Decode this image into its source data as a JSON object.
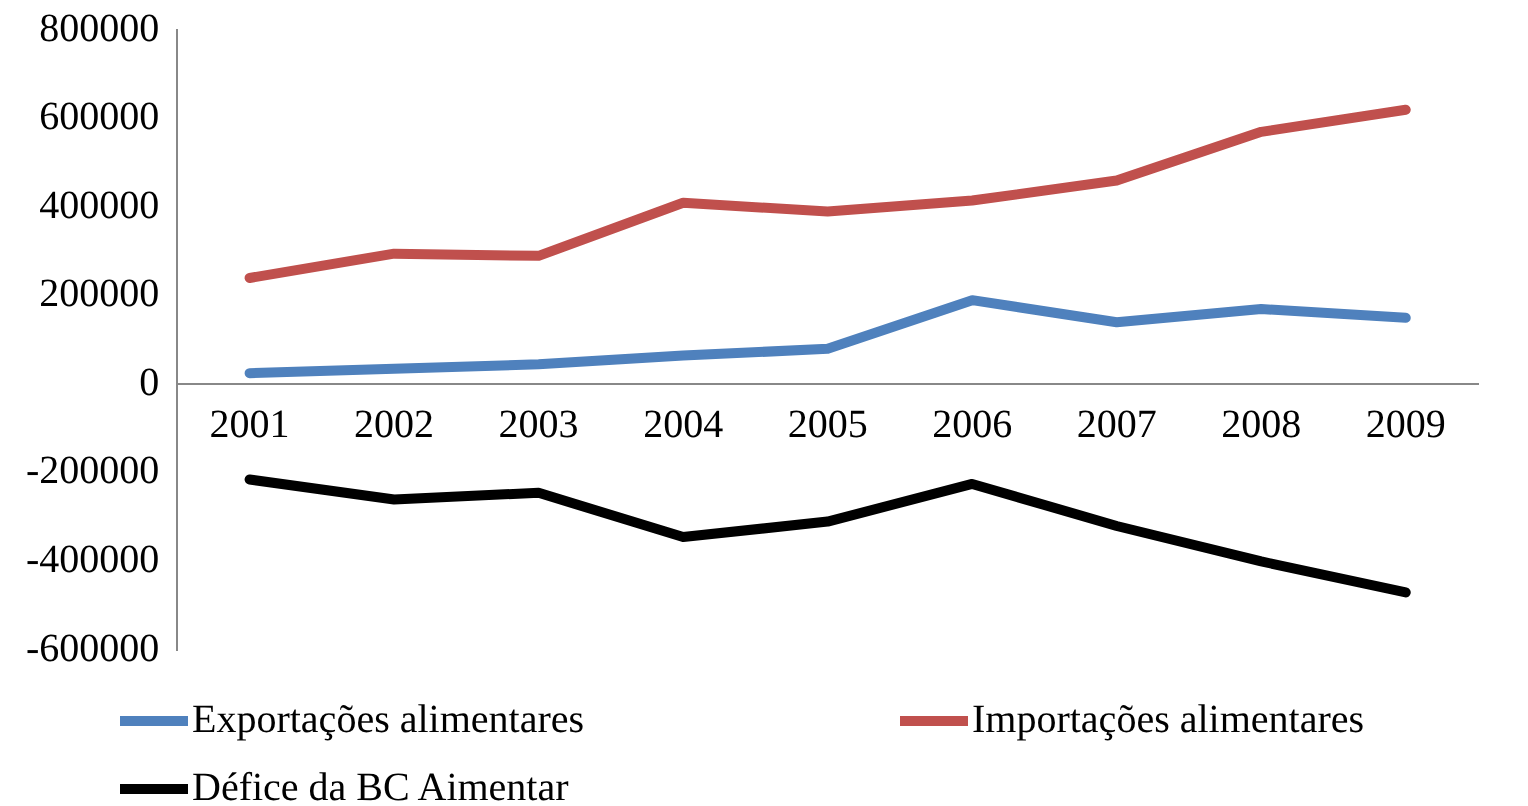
{
  "chart_data": {
    "type": "line",
    "categories": [
      "2001",
      "2002",
      "2003",
      "2004",
      "2005",
      "2006",
      "2007",
      "2008",
      "2009"
    ],
    "series": [
      {
        "name": "Exportações alimentares",
        "color": "#4f81bd",
        "values": [
          25000,
          35000,
          45000,
          65000,
          80000,
          190000,
          140000,
          170000,
          150000
        ]
      },
      {
        "name": "Importações alimentares",
        "color": "#c0504d",
        "values": [
          240000,
          295000,
          290000,
          410000,
          390000,
          415000,
          460000,
          570000,
          620000
        ]
      },
      {
        "name": "Défice da BC Aimentar",
        "color": "#000000",
        "values": [
          -215000,
          -260000,
          -245000,
          -345000,
          -310000,
          -225000,
          -320000,
          -400000,
          -470000
        ]
      }
    ],
    "ylim": [
      -600000,
      800000
    ],
    "yticks": [
      -600000,
      -400000,
      -200000,
      0,
      200000,
      400000,
      600000,
      800000
    ],
    "grid": false,
    "legend": "bottom",
    "marker": "none",
    "line_style": "solid"
  }
}
